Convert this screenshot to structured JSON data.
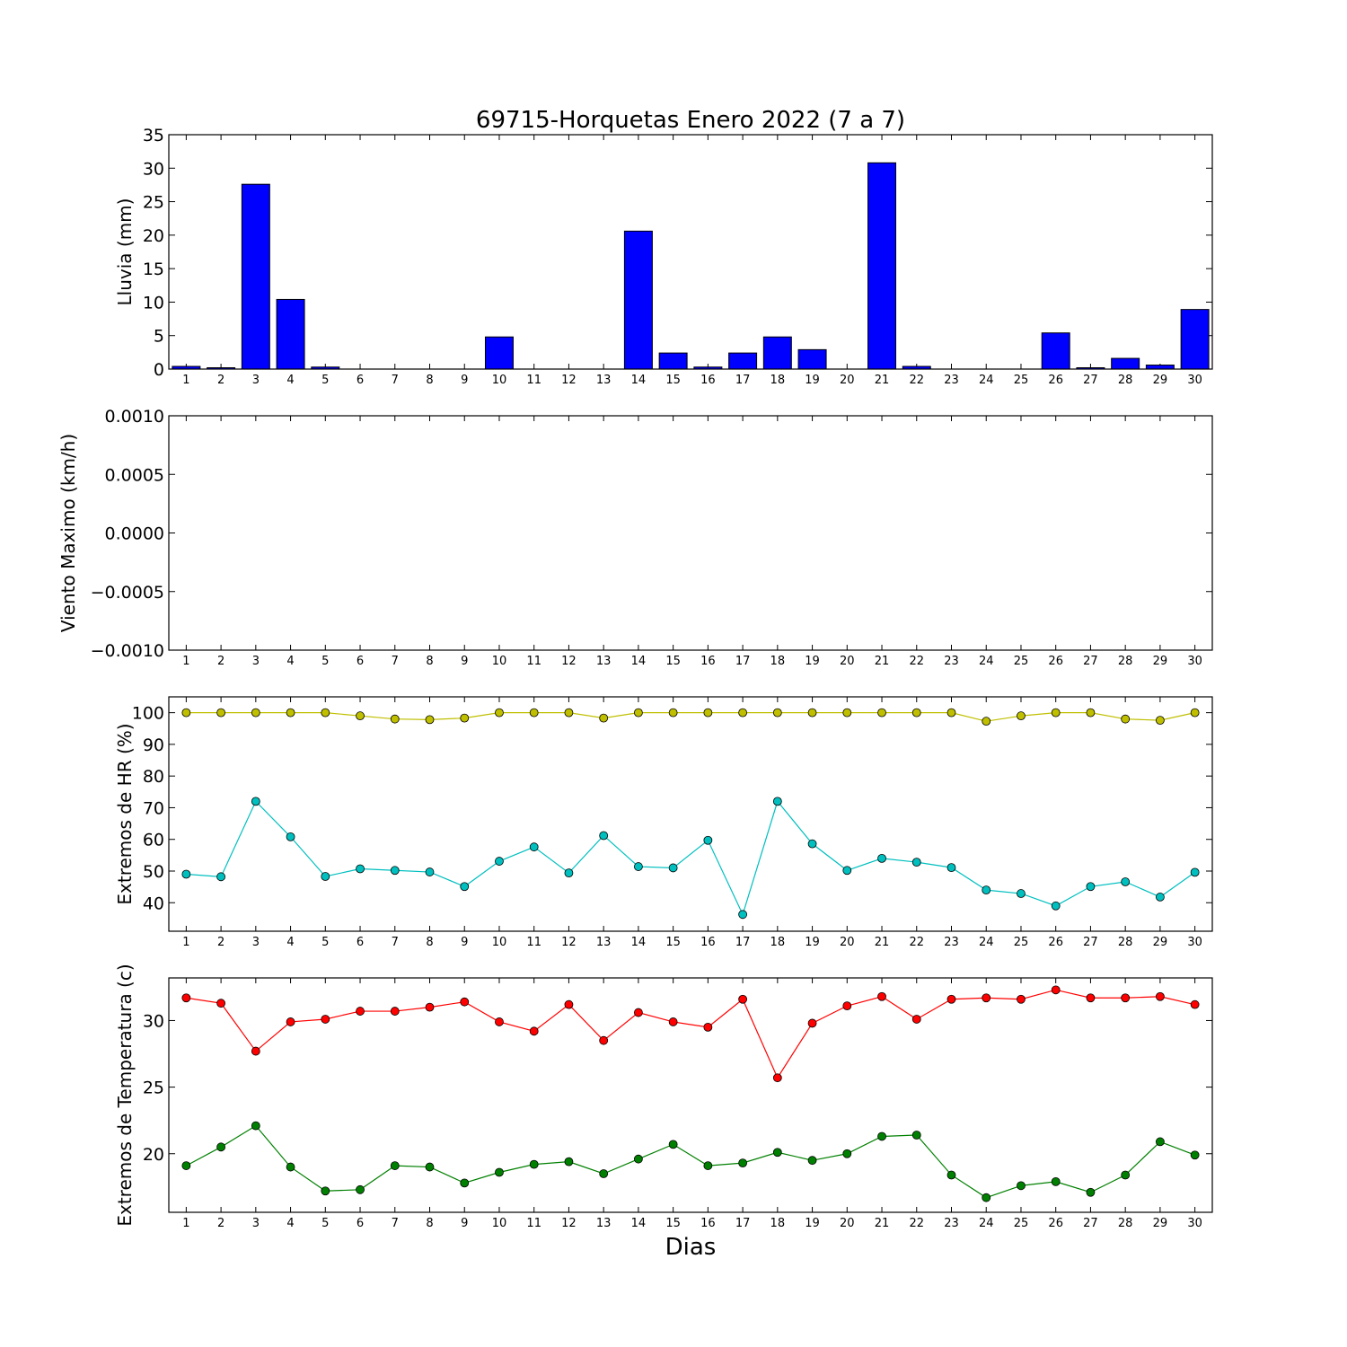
{
  "chart_data": [
    {
      "type": "bar",
      "title": "69715-Horquetas Enero 2022  (7 a 7)",
      "ylabel": "Lluvia (mm)",
      "ylim": [
        0,
        35
      ],
      "yticks": [
        "0",
        "5",
        "10",
        "15",
        "20",
        "25",
        "30",
        "35"
      ],
      "categories": [
        "1",
        "2",
        "3",
        "4",
        "5",
        "6",
        "7",
        "8",
        "9",
        "10",
        "11",
        "12",
        "13",
        "14",
        "15",
        "16",
        "17",
        "18",
        "19",
        "20",
        "21",
        "22",
        "23",
        "24",
        "25",
        "26",
        "27",
        "28",
        "29",
        "30"
      ],
      "series": [
        {
          "color": "#0000ff",
          "values": [
            0.4,
            0.2,
            27.6,
            10.4,
            0.3,
            0,
            0,
            0,
            0,
            4.8,
            0,
            0,
            0,
            20.6,
            2.4,
            0.3,
            2.4,
            4.8,
            2.9,
            0,
            30.8,
            0.4,
            0,
            0,
            0,
            5.4,
            0.2,
            1.6,
            0.6,
            8.9
          ]
        }
      ]
    },
    {
      "type": "line",
      "ylabel": "Viento Maximo (km/h)",
      "ylim": [
        -0.001,
        0.001
      ],
      "yticks": [
        "−0.0010",
        "−0.0005",
        "0.0000",
        "0.0005",
        "0.0010"
      ],
      "categories": [
        "1",
        "2",
        "3",
        "4",
        "5",
        "6",
        "7",
        "8",
        "9",
        "10",
        "11",
        "12",
        "13",
        "14",
        "15",
        "16",
        "17",
        "18",
        "19",
        "20",
        "21",
        "22",
        "23",
        "24",
        "25",
        "26",
        "27",
        "28",
        "29",
        "30"
      ],
      "series": []
    },
    {
      "type": "line",
      "ylabel": "Extremos de HR (%)",
      "ylim": [
        31,
        105
      ],
      "yticks": [
        "40",
        "50",
        "60",
        "70",
        "80",
        "90",
        "100"
      ],
      "ytick_values": [
        40,
        50,
        60,
        70,
        80,
        90,
        100
      ],
      "categories": [
        "1",
        "2",
        "3",
        "4",
        "5",
        "6",
        "7",
        "8",
        "9",
        "10",
        "11",
        "12",
        "13",
        "14",
        "15",
        "16",
        "17",
        "18",
        "19",
        "20",
        "21",
        "22",
        "23",
        "24",
        "25",
        "26",
        "27",
        "28",
        "29",
        "30"
      ],
      "series": [
        {
          "color": "#bfbf00",
          "values": [
            100,
            100,
            100,
            100,
            100,
            99,
            98,
            97.8,
            98.3,
            100,
            100,
            100,
            98.3,
            100,
            100,
            100,
            100,
            100,
            100,
            100,
            100,
            100,
            100,
            97.3,
            99,
            100,
            100,
            98,
            97.6,
            100
          ]
        },
        {
          "color": "#00bfbf",
          "values": [
            49,
            48.2,
            72,
            60.8,
            48.3,
            50.7,
            50.2,
            49.7,
            45.1,
            53.1,
            57.6,
            49.4,
            61.2,
            51.4,
            51,
            59.7,
            36.3,
            72,
            58.6,
            50.2,
            54,
            52.8,
            51.1,
            44,
            42.9,
            39,
            45.1,
            46.6,
            41.8,
            49.6
          ]
        }
      ]
    },
    {
      "type": "line",
      "ylabel": "Extremos de Temperatura (c)",
      "xlabel": "Dias",
      "ylim": [
        15.6,
        33.2
      ],
      "yticks": [
        "20",
        "25",
        "30"
      ],
      "ytick_values": [
        20,
        25,
        30
      ],
      "categories": [
        "1",
        "2",
        "3",
        "4",
        "5",
        "6",
        "7",
        "8",
        "9",
        "10",
        "11",
        "12",
        "13",
        "14",
        "15",
        "16",
        "17",
        "18",
        "19",
        "20",
        "21",
        "22",
        "23",
        "24",
        "25",
        "26",
        "27",
        "28",
        "29",
        "30"
      ],
      "series": [
        {
          "color": "#ff0000",
          "values": [
            31.7,
            31.3,
            27.7,
            29.9,
            30.1,
            30.7,
            30.7,
            31,
            31.4,
            29.9,
            29.2,
            31.2,
            28.5,
            30.6,
            29.9,
            29.5,
            31.6,
            25.7,
            29.8,
            31.1,
            31.8,
            30.1,
            31.6,
            31.7,
            31.6,
            32.3,
            31.7,
            31.7,
            31.8,
            31.2
          ]
        },
        {
          "color": "#008000",
          "values": [
            19.1,
            20.5,
            22.1,
            19,
            17.2,
            17.3,
            19.1,
            19,
            17.8,
            18.6,
            19.2,
            19.4,
            18.5,
            19.6,
            20.7,
            19.1,
            19.3,
            20.1,
            19.5,
            20,
            21.3,
            21.4,
            18.4,
            16.7,
            17.6,
            17.9,
            17.1,
            18.4,
            20.9,
            19.9
          ]
        }
      ]
    }
  ]
}
